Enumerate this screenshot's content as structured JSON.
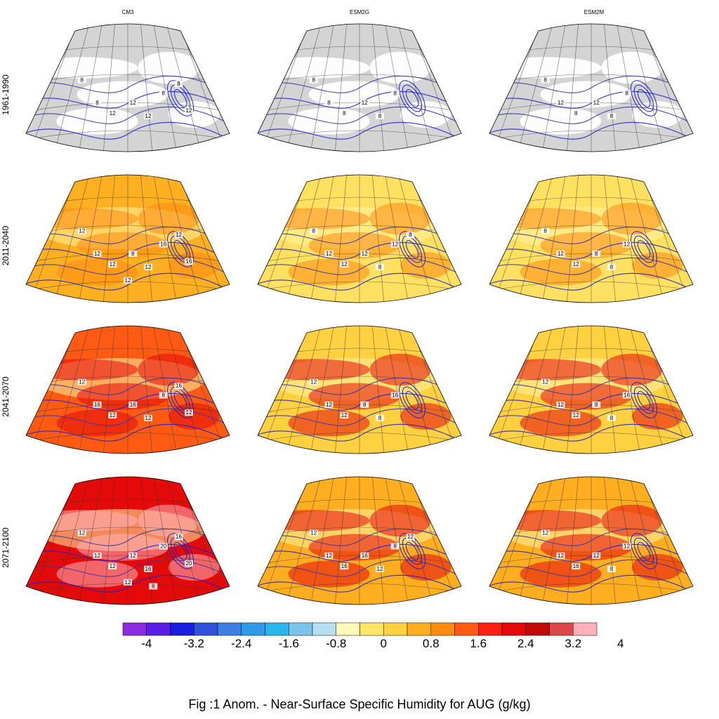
{
  "columns": [
    "CM3",
    "ESM2G",
    "ESM2M"
  ],
  "rows": [
    "1961-1990",
    "2011-2040",
    "2041-2070",
    "2071-2100"
  ],
  "caption": "Fig :1  Anom.  - Near-Surface Specific Humidity for AUG (g/kg)",
  "colorbar": {
    "colors": [
      "#8a2be2",
      "#5a1de6",
      "#1c1ce0",
      "#2f52d8",
      "#3c7ee6",
      "#2e9be8",
      "#2bb5ea",
      "#7cc5ea",
      "#b6e0f2",
      "#fff9b8",
      "#ffe566",
      "#ffd040",
      "#ffae20",
      "#ff8a10",
      "#ff5a12",
      "#ff2010",
      "#e40a0a",
      "#c00a0a",
      "#dc4848",
      "#ffb0b8"
    ],
    "ticks": [
      "-4",
      "-3.2",
      "-2.4",
      "-1.6",
      "-0.8",
      "0",
      "0.8",
      "1.6",
      "2.4",
      "3.2",
      "4"
    ]
  },
  "panels": [
    {
      "row": 0,
      "col": 0,
      "fill": "#d4d4d4",
      "labels": [
        "8",
        "8",
        "12",
        "12",
        "12",
        "8",
        "8",
        "12"
      ]
    },
    {
      "row": 0,
      "col": 1,
      "fill": "#d4d4d4",
      "labels": [
        "8",
        "8",
        "8",
        "12",
        "8",
        "8"
      ]
    },
    {
      "row": 0,
      "col": 2,
      "fill": "#d4d4d4",
      "labels": [
        "8",
        "12",
        "8",
        "12",
        "8",
        "8"
      ]
    },
    {
      "row": 1,
      "col": 0,
      "fill": "#ffb020",
      "labels": [
        "12",
        "12",
        "12",
        "8",
        "12",
        "16",
        "12",
        "16",
        "12"
      ]
    },
    {
      "row": 1,
      "col": 1,
      "fill": "#ffe060",
      "labels": [
        "8",
        "12",
        "12",
        "12",
        "8",
        "12",
        "8"
      ]
    },
    {
      "row": 1,
      "col": 2,
      "fill": "#ffe060",
      "labels": [
        "8",
        "12",
        "12",
        "8",
        "8",
        "12"
      ]
    },
    {
      "row": 2,
      "col": 0,
      "fill": "#ff5a12",
      "labels": [
        "12",
        "16",
        "12",
        "16",
        "12",
        "8",
        "16",
        "12"
      ]
    },
    {
      "row": 2,
      "col": 1,
      "fill": "#ffd040",
      "labels": [
        "12",
        "12",
        "12",
        "8",
        "8",
        "16"
      ]
    },
    {
      "row": 2,
      "col": 2,
      "fill": "#ffd040",
      "labels": [
        "12",
        "12",
        "12",
        "8",
        "8",
        "16"
      ]
    },
    {
      "row": 3,
      "col": 0,
      "fill": "#e40a0a",
      "labels": [
        "12",
        "12",
        "12",
        "12",
        "16",
        "20",
        "16",
        "20",
        "12",
        "8"
      ]
    },
    {
      "row": 3,
      "col": 1,
      "fill": "#ffae20",
      "labels": [
        "12",
        "12",
        "16",
        "16",
        "12",
        "8",
        "12"
      ]
    },
    {
      "row": 3,
      "col": 2,
      "fill": "#ffae20",
      "labels": [
        "12",
        "12",
        "16",
        "12",
        "8",
        "12"
      ]
    }
  ]
}
